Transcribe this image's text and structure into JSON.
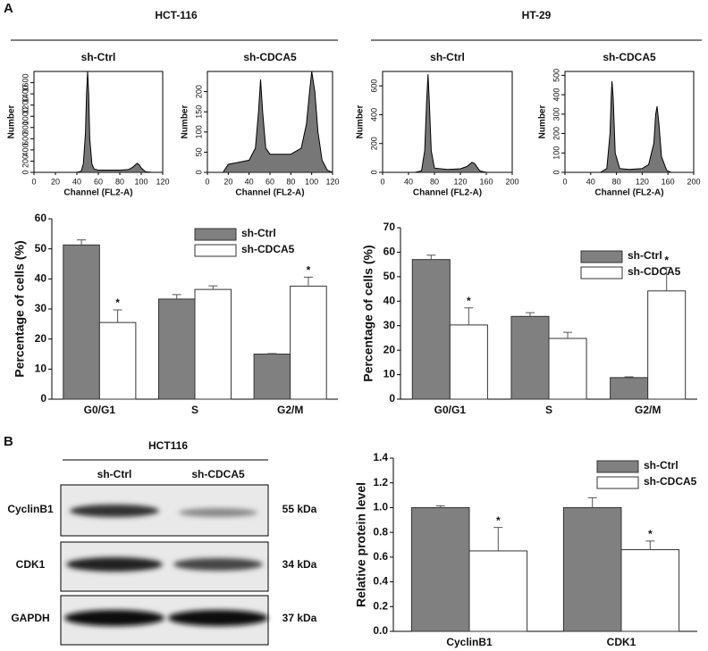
{
  "panel_a": {
    "label": "A",
    "groups": [
      "HCT-116",
      "HT-29"
    ]
  },
  "panel_b": {
    "label": "B",
    "blot": {
      "cell_line": "HCT116",
      "lanes": [
        "sh-Ctrl",
        "sh-CDCA5"
      ],
      "rows": [
        {
          "protein": "CyclinB1",
          "size": "55 kDa"
        },
        {
          "protein": "CDK1",
          "size": "34 kDa"
        },
        {
          "protein": "GAPDH",
          "size": "37 kDa"
        }
      ]
    }
  },
  "chart_data": [
    {
      "type": "line",
      "title": "sh-Ctrl",
      "xlabel": "Channel (FL2-A)",
      "ylabel": "Number",
      "color": "#4a4a4a",
      "x": [
        40,
        44,
        46,
        48,
        49,
        50,
        51,
        52,
        54,
        56,
        60,
        70,
        80,
        88,
        92,
        96,
        98,
        100,
        104,
        110
      ],
      "values": [
        0,
        20,
        150,
        700,
        1400,
        1800,
        1400,
        600,
        150,
        60,
        40,
        40,
        40,
        50,
        90,
        160,
        140,
        80,
        10,
        0
      ],
      "xlim": [
        0,
        120
      ],
      "xticks": [
        0,
        20,
        40,
        60,
        80,
        100,
        120
      ],
      "ylim": [
        0,
        1800
      ],
      "yticks": [
        0,
        200,
        400,
        600,
        800,
        1000,
        1200,
        1400,
        1600
      ]
    },
    {
      "type": "line",
      "title": "sh-CDCA5",
      "xlabel": "Channel (FL2-A)",
      "ylabel": "Number",
      "color": "#4a4a4a",
      "x": [
        15,
        20,
        30,
        40,
        46,
        49,
        51,
        53,
        56,
        60,
        70,
        80,
        90,
        95,
        98,
        100,
        103,
        106,
        110,
        115,
        120
      ],
      "values": [
        0,
        20,
        25,
        30,
        60,
        150,
        230,
        150,
        60,
        45,
        45,
        45,
        60,
        120,
        200,
        250,
        200,
        100,
        30,
        5,
        0
      ],
      "xlim": [
        0,
        120
      ],
      "xticks": [
        0,
        20,
        40,
        60,
        80,
        100,
        120
      ],
      "ylim": [
        0,
        250
      ],
      "yticks": [
        0,
        50,
        100,
        150,
        200
      ]
    },
    {
      "type": "line",
      "title": "sh-Ctrl",
      "xlabel": "Channel (FL2-A)",
      "ylabel": "Number",
      "color": "#4a4a4a",
      "x": [
        50,
        60,
        65,
        68,
        70,
        72,
        75,
        80,
        100,
        120,
        130,
        138,
        142,
        150,
        160
      ],
      "values": [
        0,
        10,
        150,
        500,
        680,
        500,
        150,
        30,
        20,
        25,
        40,
        70,
        60,
        10,
        0
      ],
      "xlim": [
        0,
        200
      ],
      "xticks": [
        0,
        40,
        80,
        120,
        160,
        200
      ],
      "ylim": [
        0,
        700
      ],
      "yticks": [
        0,
        200,
        400,
        600
      ]
    },
    {
      "type": "line",
      "title": "sh-CDCA5",
      "xlabel": "Channel (FL2-A)",
      "ylabel": "Number",
      "color": "#4a4a4a",
      "x": [
        55,
        65,
        70,
        72,
        73,
        75,
        78,
        85,
        100,
        120,
        130,
        138,
        141,
        143,
        146,
        150,
        158,
        165
      ],
      "values": [
        0,
        20,
        200,
        400,
        470,
        380,
        100,
        20,
        15,
        20,
        40,
        150,
        300,
        340,
        250,
        80,
        10,
        0
      ],
      "xlim": [
        0,
        200
      ],
      "xticks": [
        0,
        40,
        80,
        120,
        160,
        200
      ],
      "ylim": [
        0,
        520
      ],
      "yticks": [
        0,
        100,
        200,
        300,
        400,
        500
      ]
    },
    {
      "type": "bar",
      "ylabel": "Percentage of cells (%)",
      "categories": [
        "G0/G1",
        "S",
        "G2/M"
      ],
      "series": [
        {
          "name": "sh-Ctrl",
          "color": "#808080",
          "values": [
            51.3,
            33.3,
            15.0
          ],
          "errors": [
            1.7,
            1.5,
            0.2
          ]
        },
        {
          "name": "sh-CDCA5",
          "color": "#ffffff",
          "values": [
            25.5,
            36.5,
            37.6
          ],
          "errors": [
            4.2,
            1.2,
            3.0
          ]
        }
      ],
      "annotations": [
        {
          "text": "*",
          "category": "G0/G1",
          "series": "sh-CDCA5"
        },
        {
          "text": "*",
          "category": "G2/M",
          "series": "sh-CDCA5"
        }
      ],
      "ylim": [
        0,
        60
      ],
      "yticks": [
        0,
        10,
        20,
        30,
        40,
        50,
        60
      ],
      "legend": "upper right"
    },
    {
      "type": "bar",
      "ylabel": "Percentage of cells (%)",
      "categories": [
        "G0/G1",
        "S",
        "G2/M"
      ],
      "series": [
        {
          "name": "sh-Ctrl",
          "color": "#808080",
          "values": [
            57.0,
            33.8,
            8.8
          ],
          "errors": [
            1.8,
            1.5,
            0.3
          ]
        },
        {
          "name": "sh-CDCA5",
          "color": "#ffffff",
          "values": [
            30.3,
            24.8,
            44.2
          ],
          "errors": [
            7.0,
            2.5,
            9.6
          ]
        }
      ],
      "annotations": [
        {
          "text": "*",
          "category": "G0/G1",
          "series": "sh-CDCA5"
        },
        {
          "text": "*",
          "category": "G2/M",
          "series": "sh-CDCA5"
        }
      ],
      "ylim": [
        0,
        70
      ],
      "yticks": [
        0,
        10,
        20,
        30,
        40,
        50,
        60,
        70
      ],
      "legend": "upper right"
    },
    {
      "type": "bar",
      "ylabel": "Relative protein level",
      "categories": [
        "CyclinB1",
        "CDK1"
      ],
      "series": [
        {
          "name": "sh-Ctrl",
          "color": "#808080",
          "values": [
            1.0,
            1.0
          ],
          "errors": [
            0.015,
            0.08
          ]
        },
        {
          "name": "sh-CDCA5",
          "color": "#ffffff",
          "values": [
            0.65,
            0.66
          ],
          "errors": [
            0.19,
            0.07
          ]
        }
      ],
      "annotations": [
        {
          "text": "*",
          "category": "CyclinB1",
          "series": "sh-CDCA5"
        },
        {
          "text": "*",
          "category": "CDK1",
          "series": "sh-CDCA5"
        }
      ],
      "ylim": [
        0,
        1.4
      ],
      "yticks": [
        {
          "value": 0,
          "label": "0.0"
        },
        0.2,
        0.4,
        0.6,
        0.8,
        {
          "value": 1,
          "label": "1.0"
        },
        1.2,
        1.4
      ],
      "legend": "upper right"
    }
  ]
}
